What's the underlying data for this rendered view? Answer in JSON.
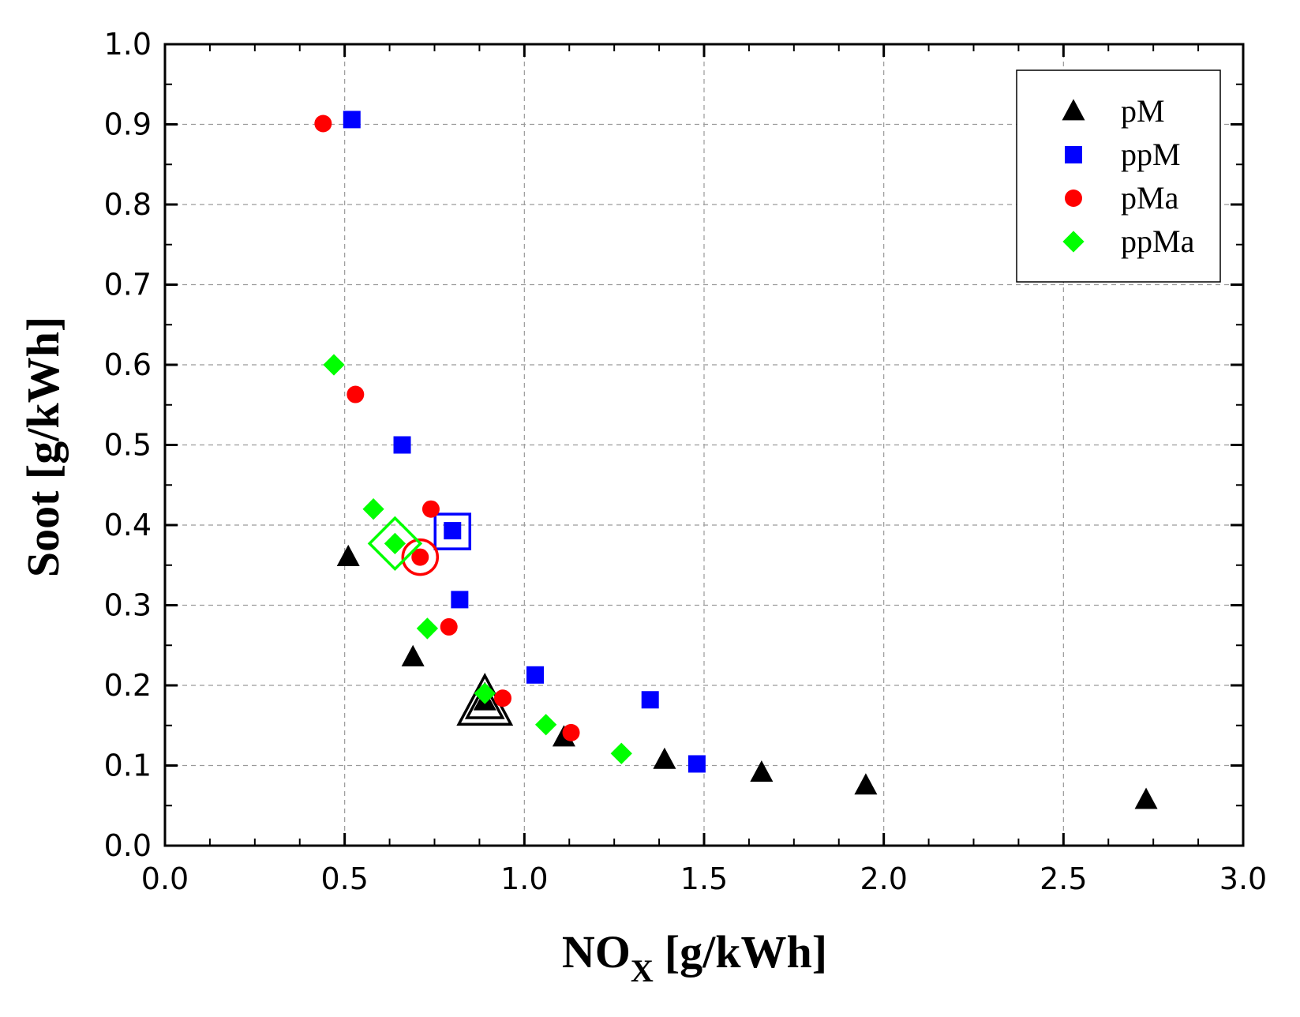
{
  "chart_data": {
    "type": "scatter",
    "title": "",
    "xlabel": "NO",
    "xlabel_subscript": "X",
    "xlabel_suffix": "[g/kWh]",
    "ylabel": "Soot [g/kWh]",
    "xlim": [
      0.0,
      3.0
    ],
    "ylim": [
      0.0,
      1.0
    ],
    "xticks": [
      "0.0",
      "0.5",
      "1.0",
      "1.5",
      "2.0",
      "2.5",
      "3.0"
    ],
    "yticks": [
      "0.0",
      "0.1",
      "0.2",
      "0.3",
      "0.4",
      "0.5",
      "0.6",
      "0.7",
      "0.8",
      "0.9",
      "1.0"
    ],
    "grid": true,
    "legend_position": "top-right",
    "series": [
      {
        "name": "pM",
        "marker": "triangle",
        "color": "#000000",
        "points": [
          [
            0.51,
            0.36
          ],
          [
            0.69,
            0.235
          ],
          [
            0.89,
            0.18
          ],
          [
            1.11,
            0.135
          ],
          [
            1.39,
            0.107
          ],
          [
            1.66,
            0.091
          ],
          [
            1.95,
            0.075
          ],
          [
            2.73,
            0.057
          ]
        ],
        "highlight": [
          0.89,
          0.177
        ]
      },
      {
        "name": "ppM",
        "marker": "square",
        "color": "#0000ff",
        "points": [
          [
            0.52,
            0.906
          ],
          [
            0.66,
            0.5
          ],
          [
            0.8,
            0.393
          ],
          [
            0.82,
            0.307
          ],
          [
            1.03,
            0.213
          ],
          [
            1.35,
            0.182
          ],
          [
            1.48,
            0.102
          ]
        ],
        "highlight": [
          0.8,
          0.392
        ]
      },
      {
        "name": "pMa",
        "marker": "circle",
        "color": "#ff0000",
        "points": [
          [
            0.44,
            0.901
          ],
          [
            0.53,
            0.563
          ],
          [
            0.74,
            0.42
          ],
          [
            0.71,
            0.36
          ],
          [
            0.79,
            0.273
          ],
          [
            0.94,
            0.184
          ],
          [
            1.13,
            0.141
          ]
        ],
        "highlight": [
          0.71,
          0.36
        ]
      },
      {
        "name": "ppMa",
        "marker": "diamond",
        "color": "#00ff00",
        "points": [
          [
            0.47,
            0.6
          ],
          [
            0.58,
            0.42
          ],
          [
            0.64,
            0.377
          ],
          [
            0.73,
            0.271
          ],
          [
            0.89,
            0.19
          ],
          [
            1.06,
            0.151
          ],
          [
            1.27,
            0.115
          ]
        ],
        "highlight": [
          0.64,
          0.377
        ]
      }
    ]
  }
}
